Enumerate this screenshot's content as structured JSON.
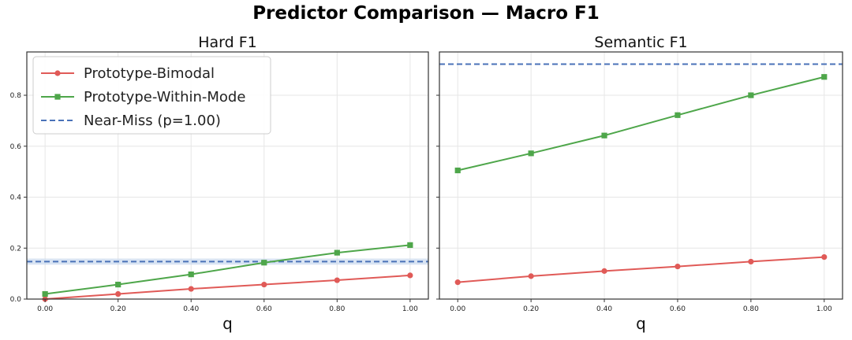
{
  "title": "Predictor Comparison — Macro F1",
  "colors": {
    "bimodal": "#e05a57",
    "within_mode": "#4ea64a",
    "near_miss": "#4a72b8",
    "near_miss_band": "#c9d8ee",
    "grid": "#e6e6e6",
    "frame": "#333333"
  },
  "chart_data": [
    {
      "type": "line",
      "title": "Hard F1",
      "xlabel": "q",
      "ylabel": "",
      "xlim": [
        -0.05,
        1.05
      ],
      "ylim": [
        0,
        0.97
      ],
      "grid": true,
      "legend": "top-left",
      "x": [
        0.0,
        0.2,
        0.4,
        0.6,
        0.8,
        1.0
      ],
      "x_tick_labels": [
        "0.00",
        "0.20",
        "0.40",
        "0.60",
        "0.80",
        "1.00"
      ],
      "y_ticks": [
        0.0,
        0.2,
        0.4,
        0.6,
        0.8
      ],
      "y_tick_labels": [
        "0.0",
        "0.2",
        "0.4",
        "0.6",
        "0.8"
      ],
      "series": [
        {
          "name": "Prototype-Bimodal",
          "marker": "circle",
          "values": [
            0.0,
            0.02,
            0.04,
            0.057,
            0.074,
            0.093
          ]
        },
        {
          "name": "Prototype-Within-Mode",
          "marker": "square",
          "values": [
            0.02,
            0.057,
            0.097,
            0.143,
            0.182,
            0.212
          ]
        }
      ],
      "reference_line": {
        "name": "Near-Miss (p=1.00)",
        "value": 0.147,
        "band": [
          0.135,
          0.159
        ],
        "style": "dashed"
      }
    },
    {
      "type": "line",
      "title": "Semantic F1",
      "xlabel": "q",
      "ylabel": "",
      "xlim": [
        -0.05,
        1.05
      ],
      "ylim": [
        0,
        0.97
      ],
      "grid": true,
      "x": [
        0.0,
        0.2,
        0.4,
        0.6,
        0.8,
        1.0
      ],
      "x_tick_labels": [
        "0.00",
        "0.20",
        "0.40",
        "0.60",
        "0.80",
        "1.00"
      ],
      "y_ticks": [
        0.0,
        0.2,
        0.4,
        0.6,
        0.8
      ],
      "series": [
        {
          "name": "Prototype-Bimodal",
          "marker": "circle",
          "values": [
            0.066,
            0.09,
            0.11,
            0.128,
            0.147,
            0.165
          ]
        },
        {
          "name": "Prototype-Within-Mode",
          "marker": "square",
          "values": [
            0.505,
            0.572,
            0.642,
            0.722,
            0.8,
            0.872
          ]
        }
      ],
      "reference_line": {
        "name": "Near-Miss (p=1.00)",
        "value": 0.922,
        "style": "dashed"
      }
    }
  ]
}
